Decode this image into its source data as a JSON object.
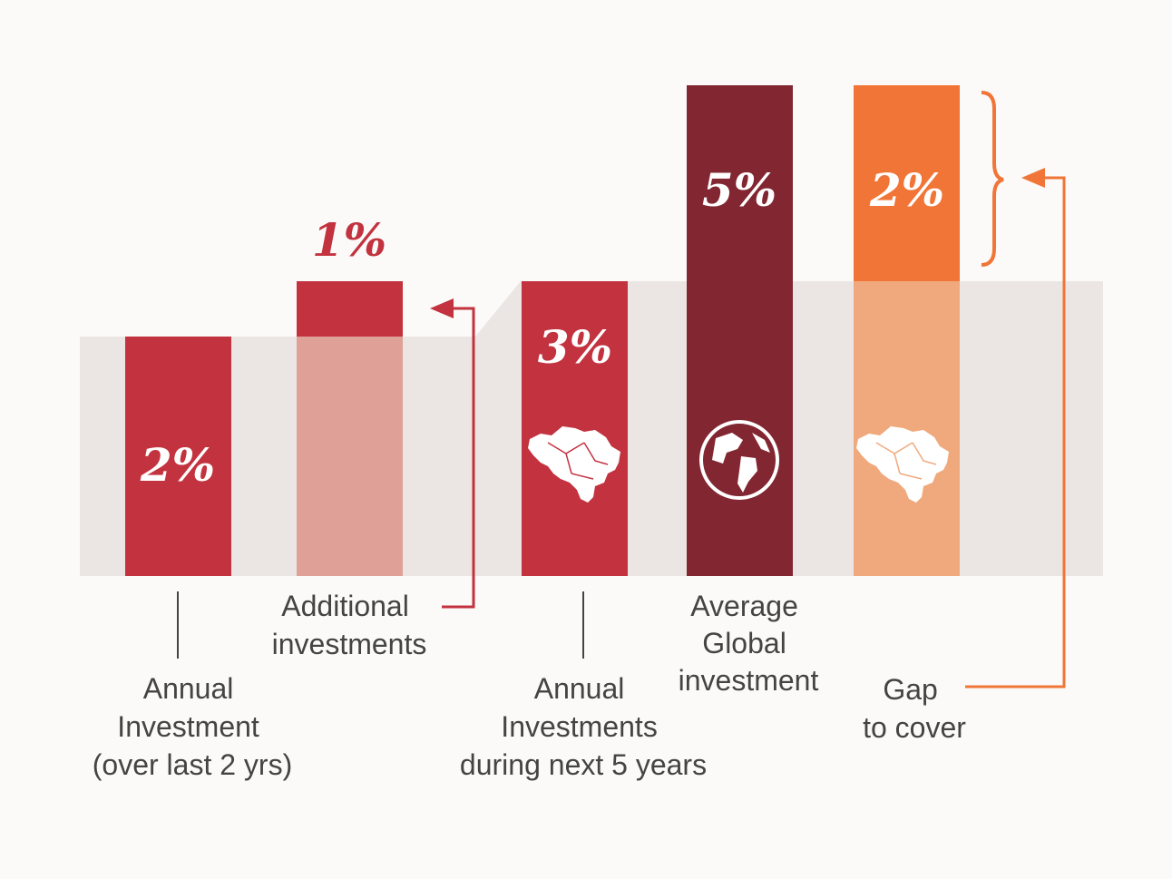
{
  "colors": {
    "band": "#ebe6e3",
    "panel": "#fbfaf9",
    "red": "#c3333f",
    "red_light": "#dfa098",
    "dark_red": "#822631",
    "orange": "#f07536",
    "orange_light": "#f0a97d",
    "text": "#444444",
    "white": "#ffffff"
  },
  "chart_data": {
    "type": "bar",
    "title": "",
    "bars": [
      {
        "id": "annual-investment",
        "value_label": "2%",
        "value": 2,
        "stacked_on": 0,
        "label_lines": [
          "Annual",
          "Investment",
          "(over last 2 yrs)"
        ],
        "icon": ""
      },
      {
        "id": "additional-investments",
        "value_label": "1%",
        "value": 1,
        "stacked_on": 2,
        "label_lines": [
          "Additional",
          "investments"
        ],
        "icon": ""
      },
      {
        "id": "annual-investments-next-5",
        "value_label": "3%",
        "value": 3,
        "stacked_on": 0,
        "label_lines": [
          "Annual",
          "Investments",
          "during next 5 years"
        ],
        "icon": "belgium-map-icon"
      },
      {
        "id": "average-global-investment",
        "value_label": "5%",
        "value": 5,
        "stacked_on": 0,
        "label_lines": [
          "Average",
          "Global",
          "investment"
        ],
        "icon": "globe-icon"
      },
      {
        "id": "gap-to-cover",
        "value_label": "2%",
        "value": 2,
        "stacked_on": 3,
        "label_lines": [
          "Gap",
          "to cover"
        ],
        "icon": "belgium-map-icon"
      }
    ]
  }
}
